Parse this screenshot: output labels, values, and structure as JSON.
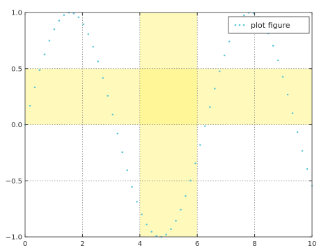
{
  "chart_data": {
    "type": "line",
    "xlim": [
      0,
      10
    ],
    "ylim": [
      -1.0,
      1.0
    ],
    "x_ticks": [
      0,
      2,
      4,
      6,
      8,
      10
    ],
    "y_ticks": [
      -1.0,
      -0.5,
      0.0,
      0.5,
      1.0
    ],
    "x_tick_labels": [
      "0",
      "2",
      "4",
      "6",
      "8",
      "10"
    ],
    "y_tick_labels": [
      "−1.0",
      "−0.5",
      "0.0",
      "0.5",
      "1.0"
    ],
    "grid": true,
    "legend_position": "top-right",
    "series": [
      {
        "name": "plot figure",
        "function": "sin(x)",
        "line_style": "dotted",
        "marker": "point",
        "color": "#5bc6d6",
        "x_start": 0,
        "x_end": 10,
        "num_points": 60
      }
    ],
    "shaded_regions": [
      {
        "orientation": "vertical",
        "x_range": [
          4,
          6
        ],
        "color": "#fff36a",
        "opacity": 0.45
      },
      {
        "orientation": "horizontal",
        "y_range": [
          0,
          0.5
        ],
        "color": "#fff36a",
        "opacity": 0.45
      }
    ]
  }
}
